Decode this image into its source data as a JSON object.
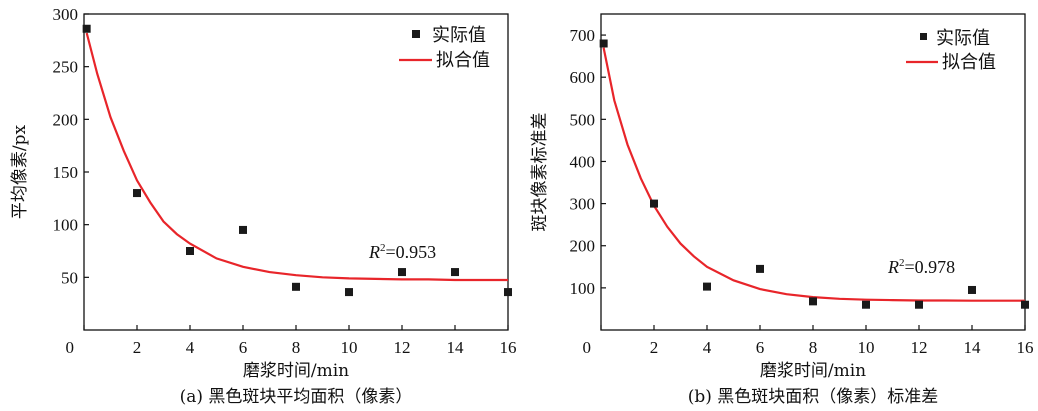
{
  "chart_data": [
    {
      "type": "scatter",
      "title": "",
      "caption": "(a) 黑色斑块平均面积（像素）",
      "xlabel": "磨浆时间/min",
      "ylabel": "平均像素/px",
      "xlim": [
        0,
        16
      ],
      "ylim": [
        0,
        300
      ],
      "xticks": [
        0,
        2,
        4,
        6,
        8,
        10,
        12,
        14,
        16
      ],
      "yticks": [
        50,
        100,
        150,
        200,
        250,
        300
      ],
      "grid": false,
      "legend": "top-right",
      "series": [
        {
          "name": "实际值",
          "kind": "scatter",
          "color": "#1a1a1a",
          "x": [
            0.1,
            2,
            4,
            6,
            8,
            10,
            12,
            14,
            16
          ],
          "y": [
            286,
            130,
            75,
            95,
            41,
            36,
            55,
            55,
            36
          ]
        },
        {
          "name": "拟合值",
          "kind": "line",
          "color": "#e8252a",
          "x": [
            0.1,
            0.5,
            1,
            1.5,
            2,
            2.5,
            3,
            3.5,
            4,
            5,
            6,
            7,
            8,
            9,
            10,
            11,
            12,
            13,
            14,
            15,
            16
          ],
          "y": [
            282,
            243,
            202,
            170,
            142,
            121,
            103,
            91,
            82,
            68,
            60,
            55,
            52,
            50,
            49,
            48.5,
            48,
            48,
            47.5,
            47.5,
            47.5
          ]
        }
      ],
      "annotation": {
        "label": "R",
        "sup": "2",
        "text": "=0.953",
        "x": 12,
        "y": 85
      }
    },
    {
      "type": "scatter",
      "title": "",
      "caption": "(b) 黑色斑块面积（像素）标准差",
      "xlabel": "磨浆时间/min",
      "ylabel": "斑块像素标准差",
      "xlim": [
        0,
        16
      ],
      "ylim": [
        0,
        750
      ],
      "xticks": [
        0,
        2,
        4,
        6,
        8,
        10,
        12,
        14,
        16
      ],
      "yticks": [
        100,
        200,
        300,
        400,
        500,
        600,
        700
      ],
      "grid": false,
      "legend": "top-right",
      "series": [
        {
          "name": "实际值",
          "kind": "scatter",
          "color": "#1a1a1a",
          "x": [
            0.1,
            2,
            4,
            6,
            8,
            10,
            12,
            14,
            16
          ],
          "y": [
            680,
            300,
            103,
            145,
            68,
            60,
            60,
            95,
            60
          ]
        },
        {
          "name": "拟合值",
          "kind": "line",
          "color": "#e8252a",
          "x": [
            0.1,
            0.5,
            1,
            1.5,
            2,
            2.5,
            3,
            3.5,
            4,
            5,
            6,
            7,
            8,
            9,
            10,
            11,
            12,
            13,
            14,
            15,
            16
          ],
          "y": [
            670,
            545,
            440,
            360,
            295,
            245,
            205,
            175,
            150,
            118,
            97,
            85,
            78,
            74,
            72,
            71,
            70,
            70,
            69.5,
            69.5,
            69.5
          ]
        }
      ],
      "annotation": {
        "label": "R",
        "sup": "2",
        "text": "=0.978",
        "x": 14,
        "y": 185
      }
    }
  ]
}
